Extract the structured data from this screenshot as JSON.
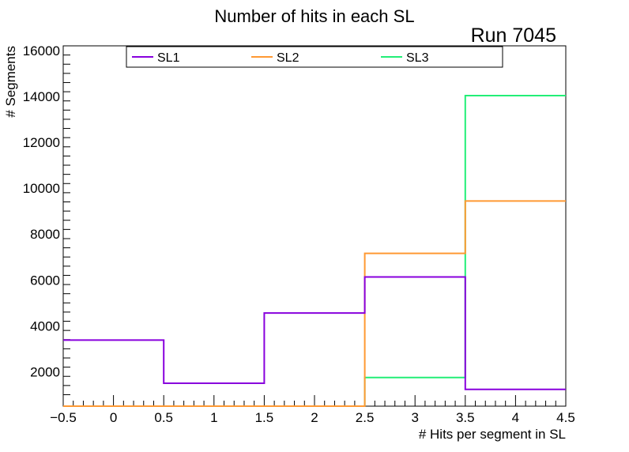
{
  "chart_data": {
    "type": "histogram-step",
    "title": "Number of hits in each SL",
    "annotation": "Run 7045",
    "xlabel": "# Hits per segment in SL",
    "ylabel": "# Segments",
    "xlim": [
      -0.5,
      4.5
    ],
    "ylim": [
      500,
      16200
    ],
    "bin_edges": [
      -0.5,
      0.5,
      1.5,
      2.5,
      3.5,
      4.5
    ],
    "x_ticks": [
      "−0.5",
      "0",
      "0.5",
      "1",
      "1.5",
      "2",
      "2.5",
      "3",
      "3.5",
      "4",
      "4.5"
    ],
    "x_tick_values": [
      -0.5,
      0,
      0.5,
      1,
      1.5,
      2,
      2.5,
      3,
      3.5,
      4,
      4.5
    ],
    "y_ticks": [
      "2000",
      "4000",
      "6000",
      "8000",
      "10000",
      "12000",
      "14000",
      "16000"
    ],
    "y_tick_values": [
      2000,
      4000,
      6000,
      8000,
      10000,
      12000,
      14000,
      16000
    ],
    "series": [
      {
        "name": "SL1",
        "color": "#8800dd",
        "values": [
          3380,
          1500,
          4560,
          6130,
          1230
        ]
      },
      {
        "name": "SL2",
        "color": "#ff9933",
        "values": [
          500,
          500,
          500,
          7160,
          9440
        ]
      },
      {
        "name": "SL3",
        "color": "#22ee77",
        "values": [
          500,
          500,
          500,
          1750,
          14030
        ]
      }
    ]
  }
}
